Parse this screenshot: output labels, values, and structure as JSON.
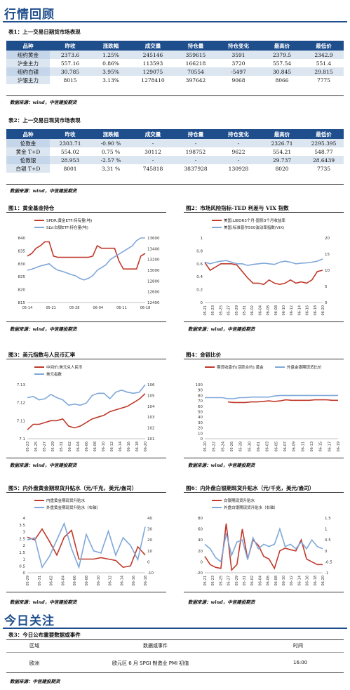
{
  "section1_title": "行情回顾",
  "table1": {
    "caption": "表1：上一交易日期货市场表现",
    "headers": [
      "品种",
      "昨收",
      "涨跌幅",
      "成交量",
      "持仓量",
      "持仓变化",
      "最高价",
      "最低价"
    ],
    "rows": [
      [
        "纽约黄金",
        "2373.6",
        "1.25%",
        "245146",
        "359615",
        "3591",
        "2379.5",
        "2342.9"
      ],
      [
        "沪金主力",
        "557.16",
        "0.86%",
        "113593",
        "166218",
        "3720",
        "557.54",
        "551.4"
      ],
      [
        "纽约白银",
        "30.785",
        "3.95%",
        "129075",
        "70554",
        "-5497",
        "30.845",
        "29.815"
      ],
      [
        "沪银主力",
        "8015",
        "3.13%",
        "1278410",
        "397642",
        "9068",
        "8066",
        "7775"
      ]
    ],
    "source": "数据来源：wind，中信建投期货"
  },
  "table2": {
    "caption": "表2：上一交易日现货市场表现",
    "headers": [
      "品种",
      "昨收",
      "涨跌幅",
      "成交量",
      "持仓量",
      "持仓变化",
      "最高价",
      "最低价"
    ],
    "rows": [
      [
        "伦敦金",
        "2303.71",
        "-0.90 %",
        "-",
        "-",
        "-",
        "2326.71",
        "2295.395"
      ],
      [
        "黄金 T+D",
        "554.02",
        "0.75 %",
        "30112",
        "198752",
        "9622",
        "554.21",
        "548.77"
      ],
      [
        "伦敦银",
        "28.953",
        "-2.57 %",
        "-",
        "-",
        "-",
        "29.737",
        "28.6439"
      ],
      [
        "白银 T+D",
        "8001",
        "3.31 %",
        "745818",
        "3837928",
        "130928",
        "8020",
        "7735"
      ]
    ],
    "source": "数据来源：wind，中信建投期货"
  },
  "chart_data": [
    {
      "caption": "图1：黄金基金持仓",
      "type": "line",
      "x": [
        "05-14",
        "05-15",
        "05-16",
        "05-17",
        "05-20",
        "05-21",
        "05-22",
        "05-23",
        "05-24",
        "05-27",
        "05-28",
        "05-29",
        "05-30",
        "05-31",
        "06-03",
        "06-04",
        "06-05",
        "06-06",
        "06-07",
        "06-10",
        "06-11",
        "06-12",
        "06-13",
        "06-14",
        "06-17",
        "06-18",
        "06-19",
        "06-20"
      ],
      "xticks": [
        "05-14",
        "05-21",
        "05-28",
        "06-04",
        "06-11",
        "06-18"
      ],
      "series": [
        {
          "name": "SPDR:黄金ETF:持有量(吨)",
          "axis": "left",
          "color": "#c0392b",
          "values": [
            833,
            834,
            836,
            837,
            838.5,
            838.5,
            833,
            832.5,
            832.5,
            832.5,
            832.5,
            832.5,
            832.5,
            832.5,
            832.5,
            833,
            837,
            836,
            836,
            836,
            836,
            831,
            828,
            828,
            828,
            828,
            833,
            834
          ]
        },
        {
          "name": "SLV:白银ETF:持仓量(吨)",
          "axis": "right",
          "color": "#7fa7d9",
          "values": [
            13000,
            13020,
            13050,
            13080,
            13100,
            13120,
            13050,
            13000,
            12980,
            12950,
            12920,
            12900,
            12850,
            12820,
            12850,
            12900,
            13000,
            13050,
            13100,
            13200,
            13250,
            13300,
            13350,
            13400,
            13450,
            13550,
            13600,
            13600
          ]
        }
      ],
      "ylim_left": [
        815,
        840
      ],
      "yticks_left": [
        815,
        820,
        825,
        830,
        835,
        840
      ],
      "ylim_right": [
        12400,
        13600
      ],
      "yticks_right": [
        12400,
        12600,
        12800,
        13000,
        13200,
        13400,
        13600
      ],
      "source": "数据来源：wind，中信建投期货"
    },
    {
      "caption": "图2：市场风险指标-TED 利差与 VIX 指数",
      "type": "line",
      "x": [
        "05-21",
        "05-22",
        "05-23",
        "05-24",
        "05-27",
        "05-28",
        "05-29",
        "05-30",
        "05-31",
        "06-03",
        "06-04",
        "06-05",
        "06-06",
        "06-07",
        "06-10",
        "06-11",
        "06-12",
        "06-13",
        "06-14",
        "06-17",
        "06-18",
        "06-19",
        "06-20"
      ],
      "xticks": [
        "05-21",
        "05-23",
        "05-25",
        "05-27",
        "05-29",
        "05-31",
        "06-02",
        "06-04",
        "06-06",
        "06-08",
        "06-10",
        "06-12",
        "06-14",
        "06-16",
        "06-18",
        "06-20"
      ],
      "series": [
        {
          "name": "美国:LIBOR3个月-国债3个月收益率",
          "axis": "left",
          "color": "#c0392b",
          "values": [
            0.62,
            0.5,
            0.55,
            0.6,
            0.6,
            0.6,
            0.58,
            0.48,
            0.38,
            0.3,
            0.3,
            0.28,
            0.35,
            0.3,
            0.28,
            0.3,
            0.35,
            0.3,
            0.32,
            0.3,
            0.35,
            0.48,
            0.5
          ]
        },
        {
          "name": "美国:标准普尔500波动率指数(VIX)",
          "axis": "right",
          "color": "#7fa7d9",
          "values": [
            12.5,
            12,
            12.5,
            12.8,
            13,
            12.5,
            12,
            12,
            11.5,
            11.8,
            12,
            12.2,
            12,
            11.8,
            12.5,
            12.8,
            12.5,
            12,
            12.2,
            12.3,
            12.5,
            12.8,
            13.5
          ]
        }
      ],
      "ylim_left": [
        0,
        1
      ],
      "yticks_left": [
        0,
        0.2,
        0.4,
        0.6,
        0.8,
        1
      ],
      "ylim_right": [
        0,
        20
      ],
      "yticks_right": [
        0,
        5,
        10,
        15,
        20
      ],
      "source": "数据来源：wind，中信建投期货"
    },
    {
      "caption": "图3：美元指数与人民币汇率",
      "type": "line",
      "x": [
        "05-23",
        "05-24",
        "05-27",
        "05-28",
        "05-29",
        "05-30",
        "05-31",
        "06-03",
        "06-04",
        "06-05",
        "06-06",
        "06-07",
        "06-10",
        "06-11",
        "06-12",
        "06-13",
        "06-14",
        "06-17",
        "06-18",
        "06-19",
        "06-20"
      ],
      "xticks": [
        "05-23",
        "05-25",
        "05-27",
        "05-29",
        "05-31",
        "06-02",
        "06-04",
        "06-06",
        "06-08",
        "06-10",
        "06-12",
        "06-14",
        "06-16",
        "06-18",
        "06-20"
      ],
      "series": [
        {
          "name": "中间价:美元兑人民币",
          "axis": "left",
          "color": "#c0392b",
          "values": [
            7.105,
            7.108,
            7.108,
            7.109,
            7.11,
            7.11,
            7.111,
            7.107,
            7.106,
            7.107,
            7.109,
            7.111,
            7.112,
            7.113,
            7.115,
            7.116,
            7.117,
            7.118,
            7.12,
            7.122,
            7.125
          ]
        },
        {
          "name": "美元指数",
          "axis": "right",
          "color": "#7fa7d9",
          "values": [
            104.8,
            104.9,
            104.6,
            104.7,
            105.1,
            104.8,
            104.6,
            104.1,
            104.2,
            104.1,
            104.3,
            105,
            105.2,
            105.2,
            104.7,
            105.3,
            105.5,
            105.3,
            105.2,
            105.3,
            106
          ]
        }
      ],
      "ylim_left": [
        7.1,
        7.13
      ],
      "yticks_left": [
        7.1,
        7.11,
        7.12,
        7.13
      ],
      "ylim_right": [
        101,
        106
      ],
      "yticks_right": [
        101,
        102,
        103,
        104,
        105,
        106
      ],
      "source": "数据来源：wind，中信建投期货"
    },
    {
      "caption": "图4：金银比价",
      "type": "line",
      "x": [
        "05-20",
        "05-21",
        "05-22",
        "05-23",
        "05-24",
        "05-27",
        "05-28",
        "05-29",
        "05-30",
        "05-31",
        "06-03",
        "06-04",
        "06-05",
        "06-06",
        "06-07",
        "06-10",
        "06-11",
        "06-12",
        "06-13",
        "06-14",
        "06-17",
        "06-18",
        "06-19",
        "06-20"
      ],
      "xticks": [
        "05-20",
        "05-22",
        "05-24",
        "05-26",
        "05-28",
        "05-30",
        "06-01",
        "06-03",
        "06-05",
        "06-07",
        "06-09",
        "06-11",
        "06-13",
        "06-15",
        "06-17",
        "06-19"
      ],
      "series": [
        {
          "name": "期货收盘价(活跃合约):黄金",
          "axis": "left",
          "color": "#c0392b",
          "values": [
            null,
            null,
            null,
            null,
            68,
            67,
            67,
            67,
            68,
            68,
            69,
            70,
            69,
            70,
            72,
            71,
            71,
            71,
            71,
            72,
            72,
            72,
            71,
            71
          ]
        },
        {
          "name": "外盘金银期现货比价",
          "axis": "left",
          "color": "#7fa7d9",
          "values": [
            76,
            76,
            76,
            76,
            74,
            74,
            76,
            76,
            77,
            77,
            77,
            77,
            79,
            80,
            80,
            80,
            80,
            80,
            80,
            80,
            80,
            80,
            80,
            80
          ]
        }
      ],
      "ylim_left": [
        0,
        100
      ],
      "yticks_left": [
        0,
        10,
        20,
        30,
        40,
        50,
        60,
        70,
        80,
        90,
        100
      ],
      "source": "数据来源：wind，中信建投期货"
    },
    {
      "caption": "图5：内外盘黄金期现货升贴水（元/千克，美元/盎司）",
      "type": "line",
      "x": [
        "05-29",
        "05-30",
        "05-31",
        "06-03",
        "06-04",
        "06-05",
        "06-06",
        "06-07",
        "06-10",
        "06-11",
        "06-12",
        "06-13",
        "06-14",
        "06-17",
        "06-18",
        "06-19",
        "06-20"
      ],
      "xticks": [
        "05-29",
        "05-31",
        "06-02",
        "06-04",
        "06-06",
        "06-08",
        "06-10",
        "06-12",
        "06-14",
        "06-16",
        "06-18"
      ],
      "series": [
        {
          "name": "内盘黄金期现货升贴水",
          "axis": "left",
          "color": "#c0392b",
          "values": [
            2.6,
            2.4,
            3.2,
            2.3,
            1.3,
            2.6,
            3.1,
            1.0,
            1.0,
            1.0,
            1.1,
            1.0,
            0.9,
            0.4,
            0.5,
            1.9,
            1.3
          ]
        },
        {
          "name": "外盘黄金期现货升贴水（右轴）",
          "axis": "right",
          "color": "#7fa7d9",
          "values": [
            20,
            22,
            -5,
            5,
            20,
            35,
            12,
            -5,
            25,
            10,
            8,
            28,
            6,
            22,
            15,
            2,
            32
          ]
        }
      ],
      "ylim_left": [
        0,
        4
      ],
      "yticks_left": [
        0,
        0.5,
        1,
        1.5,
        2,
        2.5,
        3,
        3.5,
        4
      ],
      "ylim_right": [
        -10,
        40
      ],
      "yticks_right": [
        -10,
        0,
        10,
        20,
        30,
        40
      ],
      "source": "数据来源：wind，中信建投期货"
    },
    {
      "caption": "图6：内外盘白银期现货升贴水（元/千克，美元/盎司）",
      "type": "line",
      "x": [
        "05-21",
        "05-23",
        "05-25",
        "05-27",
        "05-28",
        "05-29",
        "05-30",
        "05-31",
        "06-01",
        "06-03",
        "06-04",
        "06-05",
        "06-06",
        "06-07",
        "06-10",
        "06-11",
        "06-12",
        "06-13",
        "06-14",
        "06-17",
        "06-18",
        "06-19",
        "06-20"
      ],
      "xticks": [
        "05-21",
        "05-23",
        "05-25",
        "05-27",
        "05-29",
        "05-31",
        "06-02",
        "06-04",
        "06-06",
        "06-08",
        "06-10",
        "06-12",
        "06-14",
        "06-16",
        "06-18",
        "06-20"
      ],
      "series": [
        {
          "name": "白银期现货升贴水",
          "axis": "left",
          "color": "#c0392b",
          "values": [
            10,
            -5,
            -10,
            -12,
            70,
            -15,
            -5,
            60,
            5,
            40,
            30,
            10,
            5,
            -12,
            20,
            25,
            22,
            20,
            40,
            5,
            0,
            -5,
            -5
          ]
        },
        {
          "name": "外盘白银期现货升贴水（右轴）",
          "axis": "right",
          "color": "#7fa7d9",
          "values": [
            0.3,
            0.1,
            -0.3,
            -0.5,
            0.8,
            -0.2,
            0.4,
            0.5,
            -0.4,
            0.6,
            0.1,
            0.3,
            0.2,
            0.3,
            1.0,
            0.2,
            0.3,
            0.1,
            0.4,
            0.1,
            0.5,
            0.2,
            0.1
          ]
        }
      ],
      "ylim_left": [
        -20,
        80
      ],
      "yticks_left": [
        -20,
        0,
        20,
        40,
        60,
        80
      ],
      "ylim_right": [
        -1,
        1.5
      ],
      "yticks_right": [
        -1,
        -0.5,
        0,
        0.5,
        1,
        1.5
      ],
      "source": "数据来源：wind，中信建投期货"
    }
  ],
  "section2_title": "今日关注",
  "table3": {
    "caption": "表3：今日公布重要数据或事件",
    "headers": [
      "区域",
      "数据或事件",
      "时间"
    ],
    "rows": [
      [
        "欧洲",
        "欧元区 6 月 SPGI 制造业 PMI 初值",
        "16:00"
      ]
    ],
    "source": "数据来源：中信建投期货"
  },
  "colors": {
    "brand": "#1f4e8c",
    "header": "#1f4e8c",
    "alt_row": "#dce6f1",
    "red": "#c0392b",
    "blue": "#7fa7d9"
  }
}
